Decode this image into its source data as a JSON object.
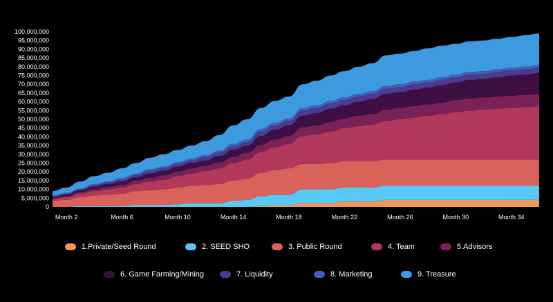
{
  "chart_data": {
    "type": "area",
    "stacked": true,
    "x": [
      1,
      2,
      3,
      4,
      5,
      6,
      7,
      8,
      9,
      10,
      11,
      12,
      13,
      14,
      15,
      16,
      17,
      18,
      19,
      20,
      21,
      22,
      23,
      24,
      25,
      26,
      27,
      28,
      29,
      30,
      31,
      32,
      33,
      34,
      35,
      36
    ],
    "x_tick_labels": [
      "Month 2",
      "Month 6",
      "Month 10",
      "Month 14",
      "Month 18",
      "Month 22",
      "Month 26",
      "Month 30",
      "Month 34"
    ],
    "x_tick_positions": [
      2,
      6,
      10,
      14,
      18,
      22,
      26,
      30,
      34
    ],
    "ylim": [
      0,
      100000000
    ],
    "y_tick_labels": [
      "0",
      "5,000,000",
      "10,000,000",
      "15,000,000",
      "20,000,000",
      "25,000,000",
      "30,000,000",
      "35,000,000",
      "40,000,000",
      "45,000,000",
      "50,000,000",
      "55,000,000",
      "60,000,000",
      "65,000,000",
      "70,000,000",
      "75,000,000",
      "80,000,000",
      "85,000,000",
      "90,000,000",
      "95,000,000",
      "100,000,000"
    ],
    "y_tick_values": [
      0,
      5000000,
      10000000,
      15000000,
      20000000,
      25000000,
      30000000,
      35000000,
      40000000,
      45000000,
      50000000,
      55000000,
      60000000,
      65000000,
      70000000,
      75000000,
      80000000,
      85000000,
      90000000,
      95000000,
      100000000
    ],
    "legend_placement": "bottom",
    "series": [
      {
        "name": "1.Private/Seed Round",
        "color": "#f0955c",
        "values": [
          0,
          0,
          0,
          0,
          0,
          0,
          0,
          0,
          0,
          0,
          0,
          0,
          0,
          0,
          0,
          500000,
          1000000,
          1000000,
          2000000,
          2000000,
          2000000,
          3000000,
          3000000,
          3000000,
          4000000,
          4000000,
          4000000,
          4000000,
          4000000,
          4000000,
          4000000,
          4000000,
          4000000,
          4000000,
          4000000,
          4000000
        ]
      },
      {
        "name": "2. SEED SHO",
        "color": "#58c8f5",
        "values": [
          0,
          0,
          500000,
          500000,
          500000,
          500000,
          1000000,
          1000000,
          1000000,
          1500000,
          2000000,
          2000000,
          2000000,
          3500000,
          4000000,
          5500000,
          6000000,
          6000000,
          8000000,
          8000000,
          8000000,
          8000000,
          8000000,
          8000000,
          8000000,
          8000000,
          8000000,
          8000000,
          8000000,
          8000000,
          8000000,
          8000000,
          8000000,
          8000000,
          8000000,
          8000000
        ]
      },
      {
        "name": "3. Public Round",
        "color": "#d9625a",
        "values": [
          3500000,
          4000000,
          5000000,
          6000000,
          6500000,
          7000000,
          8000000,
          8500000,
          9000000,
          9500000,
          10000000,
          10500000,
          11000000,
          11500000,
          12000000,
          13500000,
          14000000,
          15000000,
          14500000,
          14500000,
          15000000,
          15000000,
          15000000,
          15000000,
          15000000,
          15000000,
          15000000,
          15000000,
          15000000,
          15000000,
          15000000,
          15000000,
          15000000,
          15000000,
          15000000,
          15000000
        ]
      },
      {
        "name": "4. Team",
        "color": "#b13a5c",
        "values": [
          1000000,
          1500000,
          2000000,
          2500000,
          3000000,
          3500000,
          4000000,
          5000000,
          5500000,
          6500000,
          7000000,
          8000000,
          9000000,
          10000000,
          11000000,
          12000000,
          13000000,
          14000000,
          16000000,
          17000000,
          18000000,
          19000000,
          20000000,
          21000000,
          22000000,
          23000000,
          24000000,
          25000000,
          26000000,
          27000000,
          28000000,
          28500000,
          29000000,
          29500000,
          30000000,
          30500000
        ]
      },
      {
        "name": "5.Advisors",
        "color": "#7a2158",
        "values": [
          500000,
          500000,
          1000000,
          1000000,
          1500000,
          1500000,
          2000000,
          2000000,
          2500000,
          2500000,
          3000000,
          3000000,
          3500000,
          3500000,
          4000000,
          4000000,
          4500000,
          4500000,
          5000000,
          5000000,
          5500000,
          5500000,
          6000000,
          6000000,
          6500000,
          6500000,
          6500000,
          6500000,
          6500000,
          7000000,
          7000000,
          7000000,
          7000000,
          7000000,
          7000000,
          7000000
        ]
      },
      {
        "name": "6. Game Farming/Mining",
        "color": "#3d0f45",
        "values": [
          500000,
          1000000,
          1000000,
          1500000,
          1500000,
          2000000,
          2000000,
          2500000,
          2500000,
          3000000,
          3000000,
          3000000,
          3500000,
          4000000,
          4000000,
          5000000,
          5500000,
          6000000,
          6500000,
          7000000,
          7500000,
          7500000,
          8000000,
          8500000,
          9000000,
          9000000,
          9500000,
          9500000,
          10000000,
          10000000,
          10500000,
          10500000,
          11000000,
          11500000,
          11500000,
          12000000
        ]
      },
      {
        "name": "7. Liquidity",
        "color": "#4b3a8f",
        "values": [
          500000,
          500000,
          500000,
          1000000,
          1000000,
          1000000,
          1000000,
          1500000,
          1500000,
          1500000,
          1500000,
          2000000,
          2000000,
          2000000,
          2000000,
          2500000,
          2500000,
          2500000,
          3000000,
          3000000,
          3000000,
          3000000,
          3000000,
          3000000,
          3000000,
          3000000,
          3000000,
          3000000,
          3000000,
          3000000,
          3000000,
          3000000,
          3000000,
          3000000,
          3000000,
          3000000
        ]
      },
      {
        "name": "8. Marketing",
        "color": "#3d63b8",
        "values": [
          500000,
          500000,
          500000,
          500000,
          500000,
          1000000,
          1000000,
          1000000,
          1000000,
          1000000,
          1000000,
          1000000,
          1000000,
          1500000,
          1500000,
          1500000,
          1500000,
          1500000,
          1500000,
          1500000,
          1500000,
          1500000,
          1500000,
          1500000,
          1500000,
          1500000,
          1500000,
          1500000,
          1500000,
          1500000,
          1500000,
          1500000,
          1500000,
          1500000,
          1500000,
          1500000
        ]
      },
      {
        "name": "9. Treasure",
        "color": "#3d9ade",
        "values": [
          2500000,
          3000000,
          4000000,
          4500000,
          5000000,
          5500000,
          6000000,
          6500000,
          7000000,
          7000000,
          7500000,
          8000000,
          9000000,
          10500000,
          11500000,
          12000000,
          12500000,
          12500000,
          13500000,
          14000000,
          14500000,
          15000000,
          15500000,
          16000000,
          17500000,
          17500000,
          17500000,
          18000000,
          18000000,
          17500000,
          17500000,
          17500000,
          17500000,
          17500000,
          18000000,
          18000000
        ]
      }
    ]
  }
}
